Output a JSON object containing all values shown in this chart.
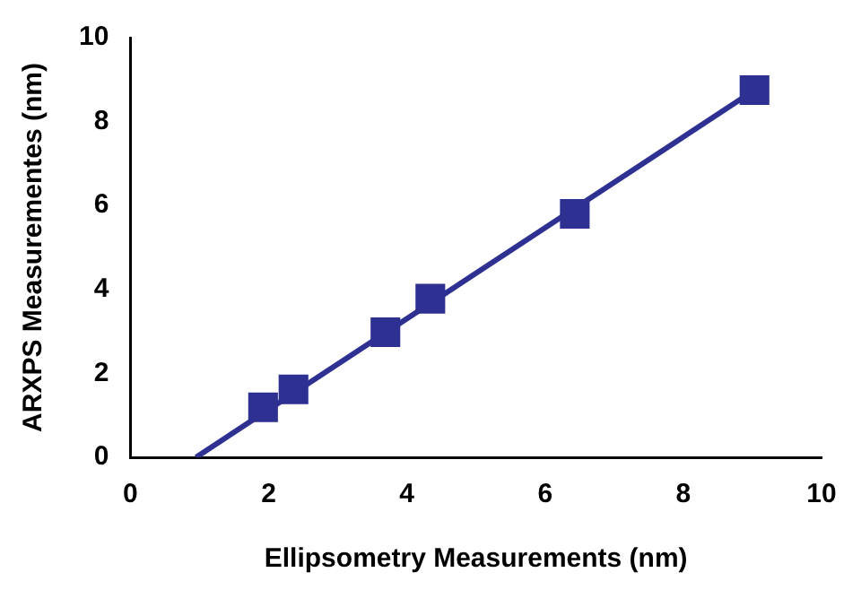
{
  "chart_data": {
    "type": "scatter",
    "xlabel": "Ellipsometry Measurements (nm)",
    "ylabel": "ARXPS Measurementes (nm)",
    "series": [
      {
        "type": "scatter",
        "color": "#2e3192",
        "marker": "square",
        "x": [
          1.92,
          2.36,
          3.69,
          4.34,
          6.43,
          9.03
        ],
        "values": [
          1.19,
          1.62,
          2.98,
          3.78,
          5.8,
          8.75
        ]
      },
      {
        "type": "line",
        "color": "#2e3192",
        "marker": "none",
        "line_style": "solid",
        "x": [
          0.95,
          9.03
        ],
        "values": [
          0,
          8.75
        ]
      }
    ],
    "xlim": [
      0,
      10
    ],
    "xticks": [
      0,
      2,
      4,
      6,
      8,
      10
    ],
    "ylim": [
      0,
      10
    ],
    "yticks": [
      0,
      2,
      4,
      6,
      8,
      10
    ],
    "grid": false,
    "legend": false
  }
}
